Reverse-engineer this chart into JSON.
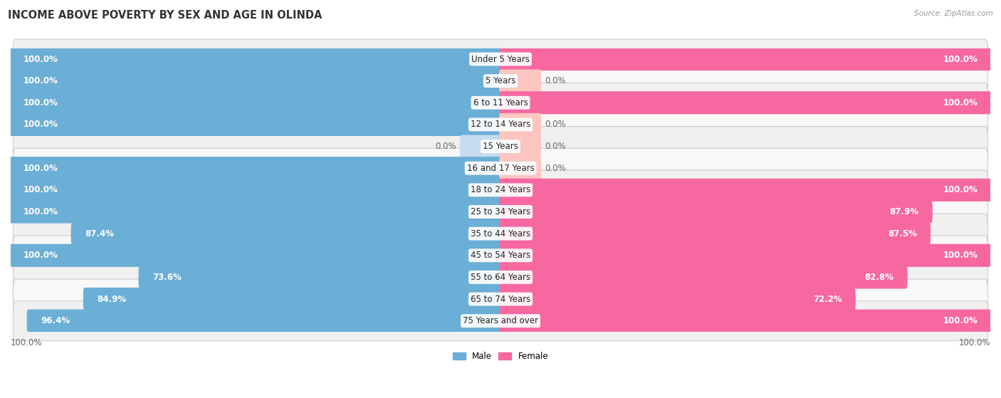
{
  "title": "INCOME ABOVE POVERTY BY SEX AND AGE IN OLINDA",
  "source": "Source: ZipAtlas.com",
  "categories": [
    "Under 5 Years",
    "5 Years",
    "6 to 11 Years",
    "12 to 14 Years",
    "15 Years",
    "16 and 17 Years",
    "18 to 24 Years",
    "25 to 34 Years",
    "35 to 44 Years",
    "45 to 54 Years",
    "55 to 64 Years",
    "65 to 74 Years",
    "75 Years and over"
  ],
  "male": [
    100.0,
    100.0,
    100.0,
    100.0,
    0.0,
    100.0,
    100.0,
    100.0,
    87.4,
    100.0,
    73.6,
    84.9,
    96.4
  ],
  "female": [
    100.0,
    0.0,
    100.0,
    0.0,
    0.0,
    0.0,
    100.0,
    87.9,
    87.5,
    100.0,
    82.8,
    72.2,
    100.0
  ],
  "male_color": "#6baed6",
  "female_color": "#f768a1",
  "male_color_light": "#c6dbef",
  "female_color_light": "#fcc5c0",
  "row_bg_color": "#efefef",
  "row_border_color": "#d8d8d8",
  "title_fontsize": 10.5,
  "label_fontsize": 8.5,
  "tick_fontsize": 8.5,
  "value_fontsize": 8.5
}
